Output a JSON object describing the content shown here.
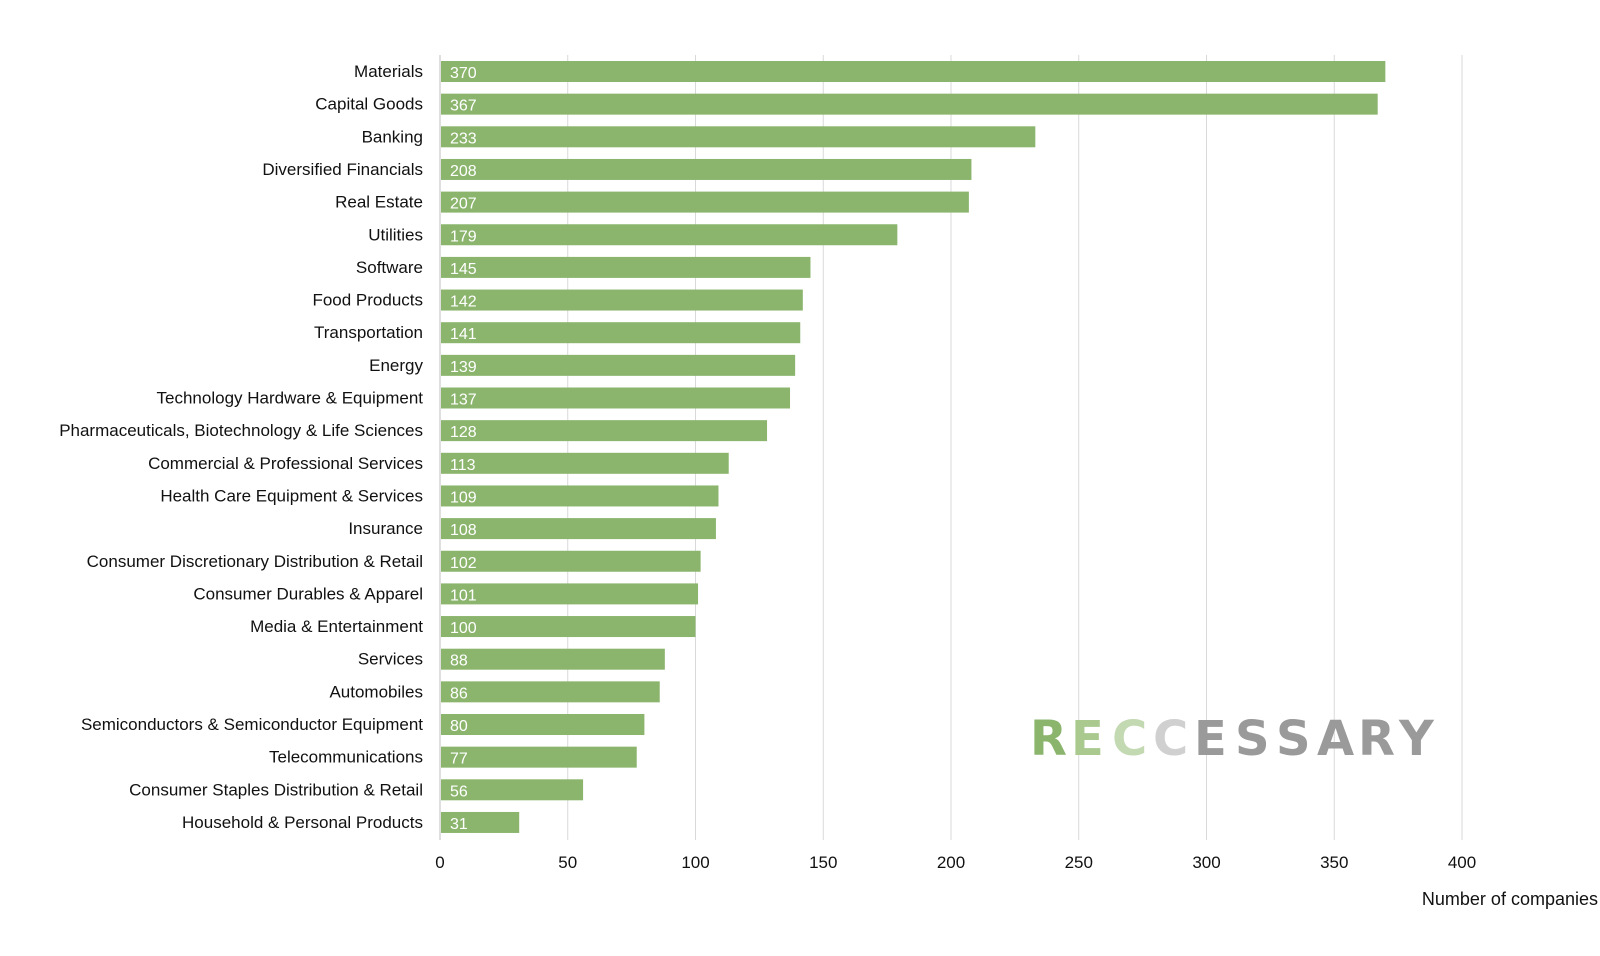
{
  "chart_data": {
    "type": "bar",
    "orientation": "horizontal",
    "categories": [
      "Materials",
      "Capital Goods",
      "Banking",
      "Diversified Financials",
      "Real Estate",
      "Utilities",
      "Software",
      "Food Products",
      "Transportation",
      "Energy",
      "Technology Hardware & Equipment",
      "Pharmaceuticals, Biotechnology & Life Sciences",
      "Commercial & Professional Services",
      "Health Care Equipment & Services",
      "Insurance",
      "Consumer Discretionary Distribution & Retail",
      "Consumer Durables & Apparel",
      "Media & Entertainment",
      "Services",
      "Automobiles",
      "Semiconductors & Semiconductor Equipment",
      "Telecommunications",
      "Consumer Staples Distribution & Retail",
      "Household & Personal Products"
    ],
    "values": [
      370,
      367,
      233,
      208,
      207,
      179,
      145,
      142,
      141,
      139,
      137,
      128,
      113,
      109,
      108,
      102,
      101,
      100,
      88,
      86,
      80,
      77,
      56,
      31
    ],
    "xlabel": "Number of companies",
    "xlim": [
      0,
      400
    ],
    "xticks": [
      0,
      50,
      100,
      150,
      200,
      250,
      300,
      350,
      400
    ],
    "grid": "vertical",
    "legend": "none",
    "bar_color": "#8bb56d",
    "data_labels": "inside-start"
  },
  "watermark": {
    "text": "RECCESSARY",
    "colors": {
      "R": "#8bb56d",
      "E": "#a9c98f",
      "C1": "#c3d9b1",
      "C2": "#d0d0d0",
      "rest": "#9a9a9a"
    }
  }
}
